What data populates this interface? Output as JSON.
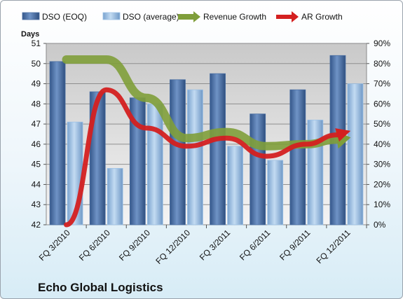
{
  "chart_data": {
    "type": "bar",
    "categories": [
      "FQ 3/2010",
      "FQ 6/2010",
      "FQ 9/2010",
      "FQ 12/2010",
      "FQ 3/2011",
      "FQ 6/2011",
      "FQ 9/2011",
      "FQ 12/2011"
    ],
    "series": [
      {
        "name": "DSO (EOQ)",
        "type": "bar",
        "axis": "left",
        "color": "#4a6fa3",
        "values": [
          50.1,
          48.6,
          48.3,
          49.2,
          49.5,
          47.5,
          48.7,
          50.4
        ]
      },
      {
        "name": "DSO (average)",
        "type": "bar",
        "axis": "left",
        "color": "#9ec2e6",
        "values": [
          47.1,
          44.8,
          48.0,
          48.7,
          45.9,
          45.2,
          47.2,
          49.0
        ]
      },
      {
        "name": "Revenue Growth",
        "type": "line",
        "axis": "right",
        "color": "#7f9e3a",
        "values": [
          0.82,
          0.82,
          0.63,
          0.43,
          0.46,
          0.39,
          0.4,
          0.43
        ]
      },
      {
        "name": "AR Growth",
        "type": "line",
        "axis": "right",
        "color": "#d42020",
        "values": [
          0.0,
          0.67,
          0.48,
          0.39,
          0.43,
          0.34,
          0.4,
          0.46
        ]
      }
    ],
    "ylabel": "Days",
    "ylim": [
      42,
      51
    ],
    "yticks": [
      "42",
      "43",
      "44",
      "45",
      "46",
      "47",
      "48",
      "49",
      "50",
      "51"
    ],
    "y2lim": [
      0,
      0.9
    ],
    "y2ticks": [
      "0%",
      "10%",
      "20%",
      "30%",
      "40%",
      "50%",
      "60%",
      "70%",
      "80%",
      "90%"
    ],
    "legend": "top",
    "grid": true,
    "annotation": "Echo Global Logistics"
  }
}
